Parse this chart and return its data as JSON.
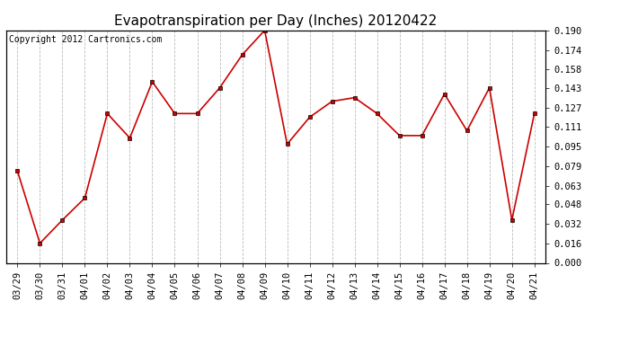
{
  "title": "Evapotranspiration per Day (Inches) 20120422",
  "copyright": "Copyright 2012 Cartronics.com",
  "dates": [
    "03/29",
    "03/30",
    "03/31",
    "04/01",
    "04/02",
    "04/03",
    "04/04",
    "04/05",
    "04/06",
    "04/07",
    "04/08",
    "04/09",
    "04/10",
    "04/11",
    "04/12",
    "04/13",
    "04/14",
    "04/15",
    "04/16",
    "04/17",
    "04/18",
    "04/19",
    "04/20",
    "04/21"
  ],
  "values": [
    0.075,
    0.016,
    0.035,
    0.053,
    0.122,
    0.102,
    0.148,
    0.122,
    0.122,
    0.143,
    0.17,
    0.19,
    0.097,
    0.119,
    0.132,
    0.135,
    0.122,
    0.104,
    0.104,
    0.138,
    0.108,
    0.143,
    0.035,
    0.122
  ],
  "line_color": "#cc0000",
  "marker": "s",
  "marker_size": 3,
  "ylim": [
    0.0,
    0.19
  ],
  "yticks": [
    0.0,
    0.016,
    0.032,
    0.048,
    0.063,
    0.079,
    0.095,
    0.111,
    0.127,
    0.143,
    0.158,
    0.174,
    0.19
  ],
  "bg_color": "#ffffff",
  "grid_color": "#bbbbbb",
  "title_fontsize": 11,
  "copyright_fontsize": 7,
  "tick_fontsize": 7.5
}
